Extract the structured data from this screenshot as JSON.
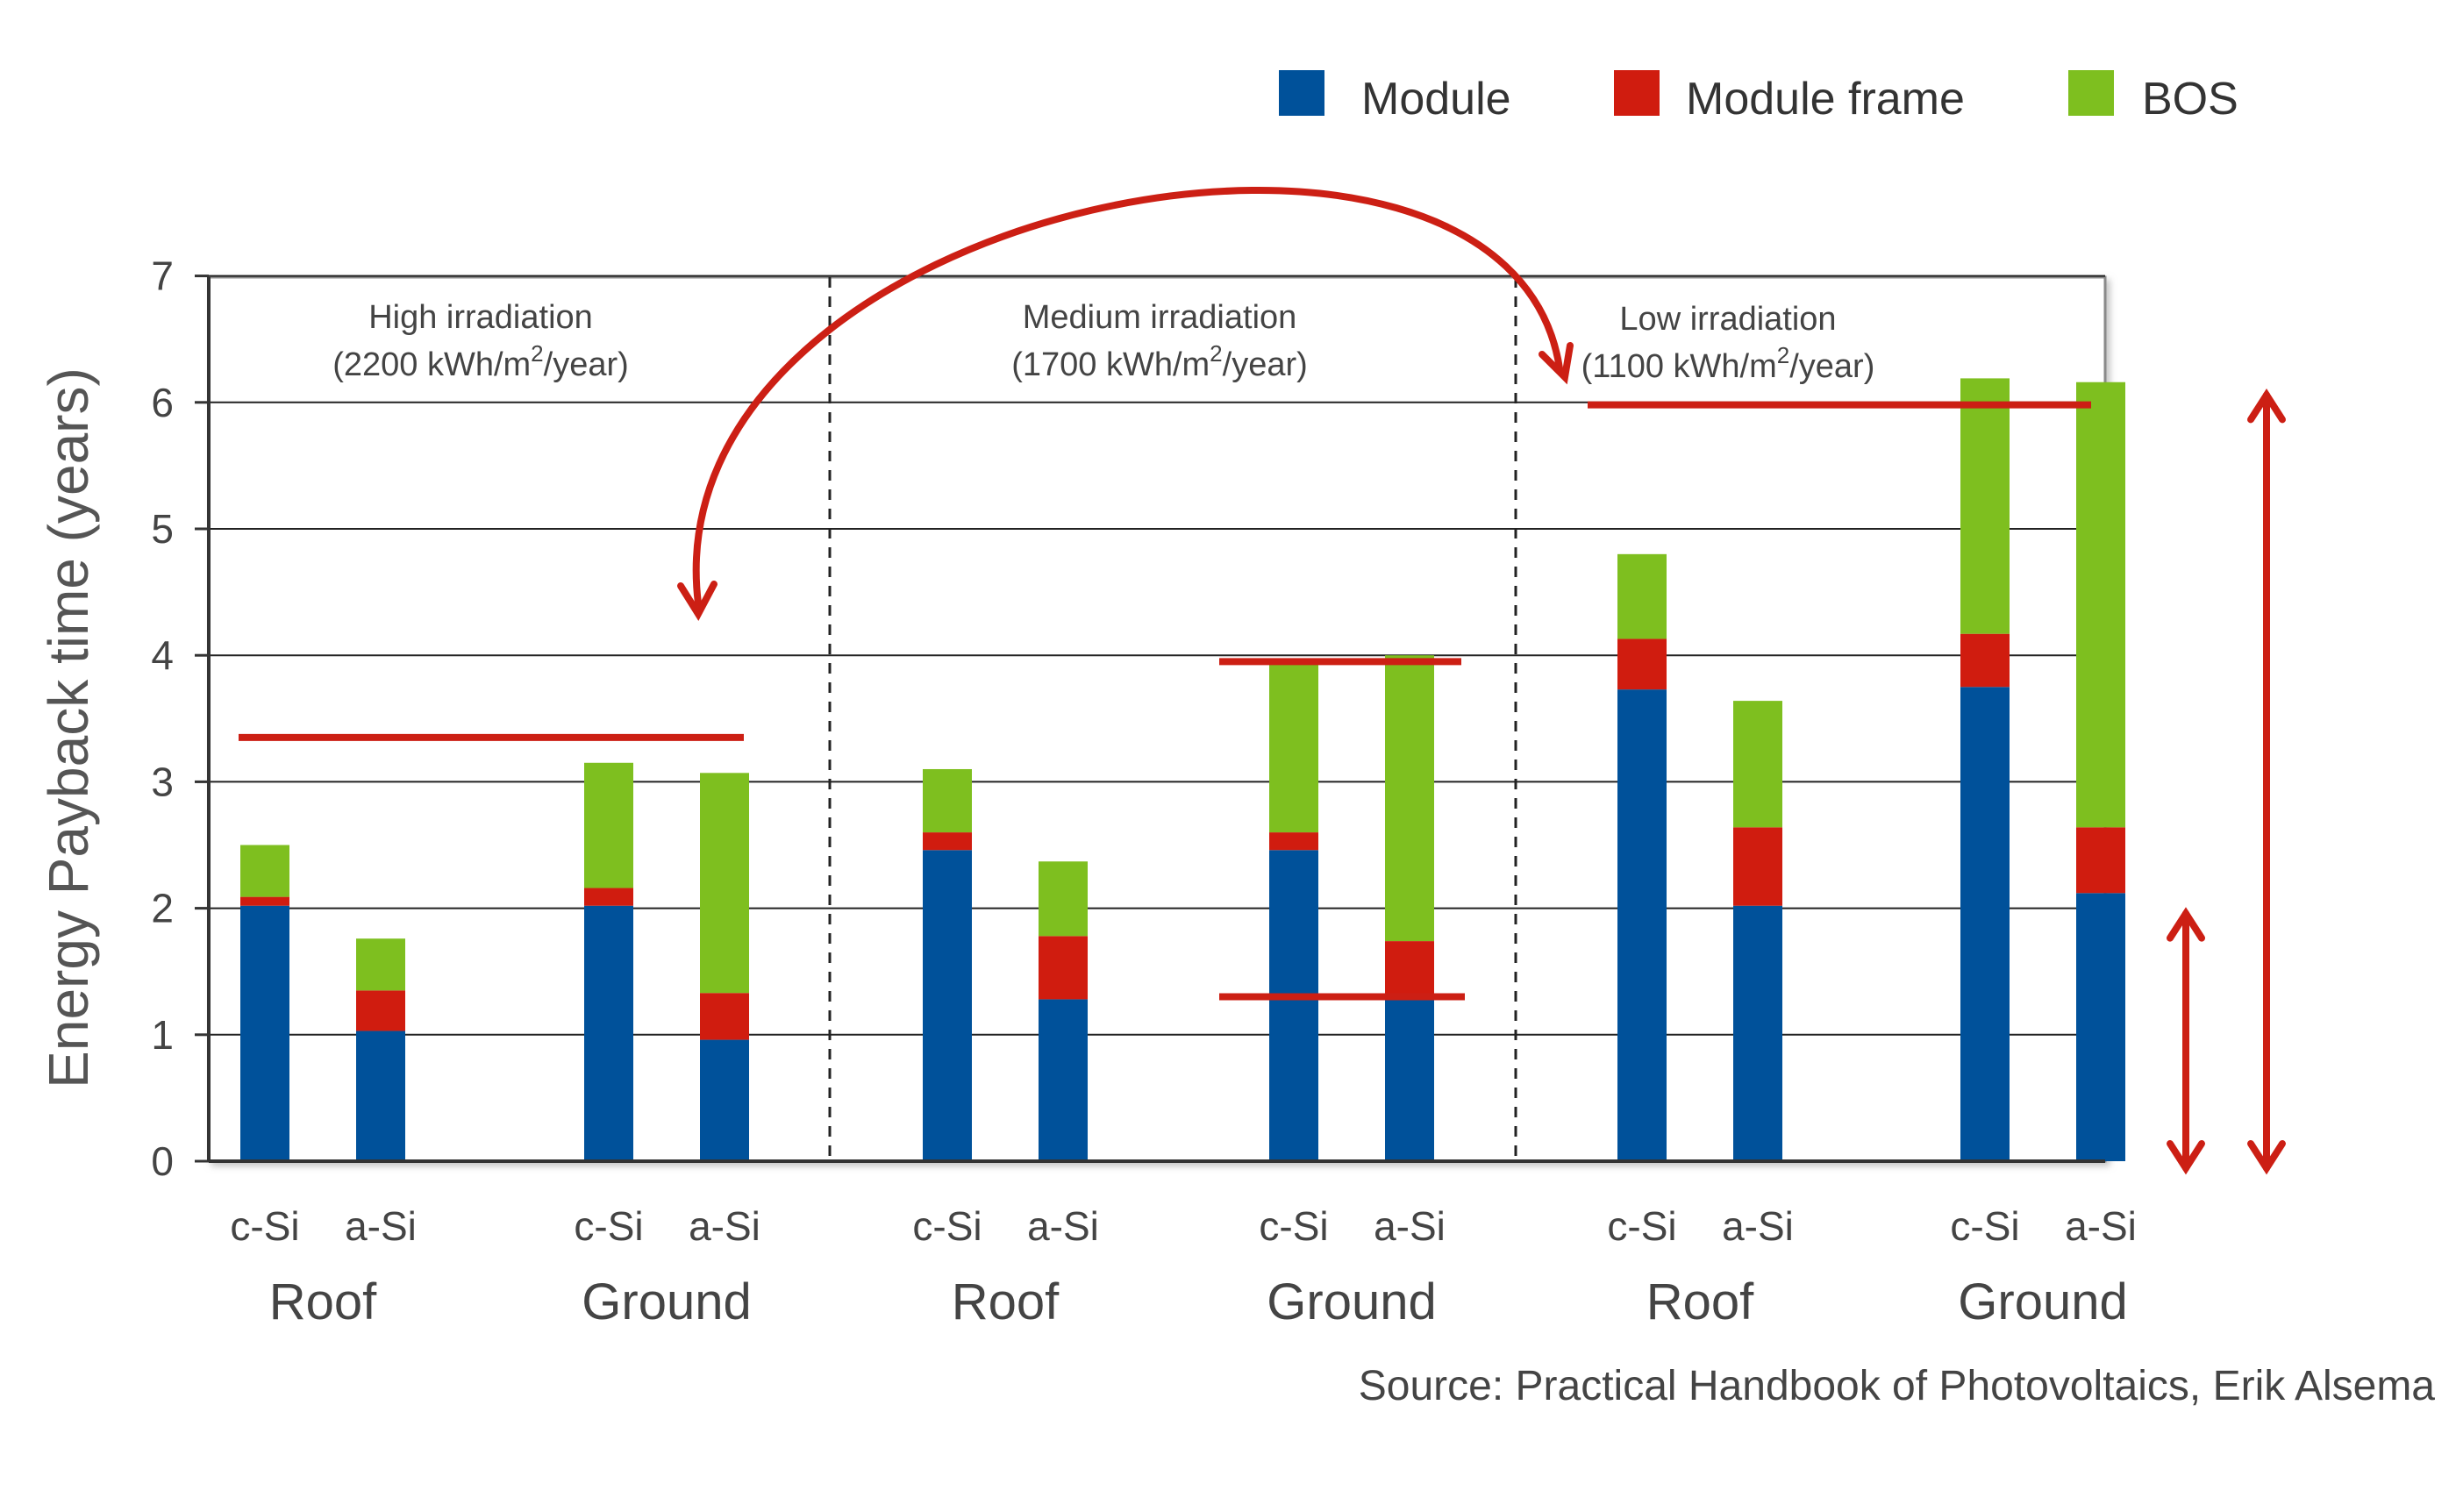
{
  "chart_data": {
    "type": "bar",
    "stacked": true,
    "title": "",
    "ylabel": "Energy Payback time (years)",
    "ylim": [
      0,
      7
    ],
    "yticks": [
      "0",
      "1",
      "2",
      "3",
      "4",
      "5",
      "6",
      "7"
    ],
    "grid": true,
    "legend_position": "top-right",
    "series": [
      {
        "name": "Module",
        "color": "#00519a"
      },
      {
        "name": "Module frame",
        "color": "#d01c0f"
      },
      {
        "name": "BOS",
        "color": "#7ebf1f"
      }
    ],
    "regions": [
      {
        "name": "High irradiation",
        "sub_pre": "(2200 kWh/m",
        "sup": "2",
        "sub_post": "/year)"
      },
      {
        "name": "Medium irradiation",
        "sub_pre": "(1700 kWh/m",
        "sup": "2",
        "sub_post": "/year)"
      },
      {
        "name": "Low irradiation",
        "sub_pre": "(1100 kWh/m",
        "sup": "2",
        "sub_post": "/year)"
      }
    ],
    "bars": [
      {
        "region": "High irradiation",
        "group": "Roof",
        "label": "c-Si",
        "values": [
          2.02,
          0.07,
          0.41
        ]
      },
      {
        "region": "High irradiation",
        "group": "Roof",
        "label": "a-Si",
        "values": [
          1.03,
          0.32,
          0.41
        ]
      },
      {
        "region": "High irradiation",
        "group": "Ground",
        "label": "c-Si",
        "values": [
          2.02,
          0.14,
          0.99
        ]
      },
      {
        "region": "High irradiation",
        "group": "Ground",
        "label": "a-Si",
        "values": [
          0.96,
          0.37,
          1.74
        ]
      },
      {
        "region": "Medium irradiation",
        "group": "Roof",
        "label": "c-Si",
        "values": [
          2.46,
          0.14,
          0.5
        ]
      },
      {
        "region": "Medium irradiation",
        "group": "Roof",
        "label": "a-Si",
        "values": [
          1.28,
          0.5,
          0.59
        ]
      },
      {
        "region": "Medium irradiation",
        "group": "Ground",
        "label": "c-Si",
        "values": [
          2.46,
          0.14,
          1.35
        ]
      },
      {
        "region": "Medium irradiation",
        "group": "Ground",
        "label": "a-Si",
        "values": [
          1.28,
          0.46,
          2.26
        ]
      },
      {
        "region": "Low irradiation",
        "group": "Roof",
        "label": "c-Si",
        "values": [
          3.73,
          0.4,
          0.67
        ]
      },
      {
        "region": "Low irradiation",
        "group": "Roof",
        "label": "a-Si",
        "values": [
          2.02,
          0.62,
          1.0
        ]
      },
      {
        "region": "Low irradiation",
        "group": "Ground",
        "label": "c-Si",
        "values": [
          3.75,
          0.42,
          2.02
        ]
      },
      {
        "region": "Low irradiation",
        "group": "Ground",
        "label": "a-Si",
        "values": [
          2.12,
          0.52,
          3.52
        ]
      }
    ],
    "annotations": {
      "reference_lines": [
        {
          "y": 3.35,
          "span": "High irradiation (all bars)"
        },
        {
          "y": 3.95,
          "span": "Medium irradiation Ground"
        },
        {
          "y": 1.3,
          "span": "Medium irradiation Ground"
        },
        {
          "y": 5.98,
          "span": "Low irradiation (all bars)"
        }
      ],
      "double_arrows": [
        {
          "from": 0,
          "to": 2.0
        },
        {
          "from": 0,
          "to": 6.1
        }
      ],
      "curved_arrow": "two-headed, Low irradiation ↔ High irradiation Ground"
    },
    "source": "Source: Practical Handbook of Photovoltaics, Erik Alsema"
  }
}
